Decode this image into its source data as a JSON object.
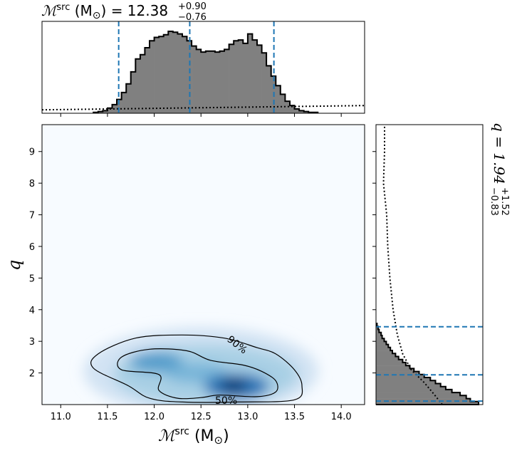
{
  "top_title": {
    "main": "ℳ",
    "sup": "src",
    "rest": " (M",
    "sun": "⊙",
    "close": ") = 12.38",
    "plus": "+0.90",
    "minus": "−0.76"
  },
  "right_title": {
    "main": "q = 1.94",
    "plus": "+1.52",
    "minus": "−0.83"
  },
  "xlabel": {
    "main": "ℳ",
    "sup": "src",
    "rest": " (M",
    "sun": "⊙",
    "close": ")"
  },
  "ylabel": "q",
  "contour_labels": [
    "90%",
    "50%"
  ],
  "chart_data": [
    {
      "type": "heatmap",
      "panel": "joint",
      "x_range": [
        10.8,
        14.25
      ],
      "y_range": [
        1.0,
        9.85
      ],
      "x_ticks": [
        11.0,
        11.5,
        12.0,
        12.5,
        13.0,
        13.5,
        14.0
      ],
      "x_tick_labels": [
        "11.0",
        "11.5",
        "12.0",
        "12.5",
        "13.0",
        "13.5",
        "14.0"
      ],
      "y_ticks": [
        2,
        3,
        4,
        5,
        6,
        7,
        8,
        9
      ],
      "y_tick_labels": [
        "2",
        "3",
        "4",
        "5",
        "6",
        "7",
        "8",
        "9"
      ],
      "density_peaks": [
        {
          "x": 12.85,
          "y": 1.6,
          "weight": 1.0
        },
        {
          "x": 12.0,
          "y": 2.35,
          "weight": 0.55
        },
        {
          "x": 12.4,
          "y": 2.0,
          "weight": 0.35
        }
      ],
      "contour_90": [
        [
          11.4,
          2.6
        ],
        [
          11.8,
          3.1
        ],
        [
          12.3,
          3.2
        ],
        [
          12.75,
          3.1
        ],
        [
          13.1,
          2.8
        ],
        [
          13.3,
          2.6
        ],
        [
          13.5,
          2.1
        ],
        [
          13.58,
          1.6
        ],
        [
          13.5,
          1.15
        ],
        [
          12.9,
          1.08
        ],
        [
          12.3,
          1.08
        ],
        [
          11.95,
          1.2
        ],
        [
          11.72,
          1.6
        ],
        [
          11.35,
          2.15
        ]
      ],
      "contour_50": [
        [
          11.65,
          2.5
        ],
        [
          11.95,
          2.75
        ],
        [
          12.35,
          2.7
        ],
        [
          12.6,
          2.4
        ],
        [
          12.95,
          2.25
        ],
        [
          13.15,
          2.05
        ],
        [
          13.3,
          1.75
        ],
        [
          13.3,
          1.4
        ],
        [
          13.1,
          1.25
        ],
        [
          12.7,
          1.3
        ],
        [
          12.5,
          1.22
        ],
        [
          12.25,
          1.2
        ],
        [
          12.05,
          1.45
        ],
        [
          12.05,
          1.95
        ],
        [
          11.65,
          2.1
        ]
      ],
      "contour_level_labels": [
        "90%",
        "50%"
      ],
      "colormap": "Blues"
    },
    {
      "type": "bar",
      "panel": "top_marginal",
      "parameter": "chirp mass",
      "bin_edges_start": 11.35,
      "bin_width": 0.05,
      "values": [
        0.01,
        0.02,
        0.03,
        0.06,
        0.1,
        0.16,
        0.24,
        0.34,
        0.48,
        0.63,
        0.68,
        0.76,
        0.84,
        0.88,
        0.89,
        0.91,
        0.95,
        0.94,
        0.92,
        0.89,
        0.84,
        0.78,
        0.74,
        0.71,
        0.72,
        0.72,
        0.71,
        0.72,
        0.74,
        0.8,
        0.84,
        0.85,
        0.81,
        0.92,
        0.85,
        0.79,
        0.7,
        0.55,
        0.43,
        0.32,
        0.22,
        0.14,
        0.09,
        0.05,
        0.03,
        0.02,
        0.01,
        0.01
      ],
      "quantile_lines": [
        11.62,
        12.38,
        13.28
      ],
      "prior_level": 0.04,
      "fill_color": "#808080",
      "line_color": "#1f77b4"
    },
    {
      "type": "bar",
      "panel": "right_marginal",
      "parameter": "q",
      "bin_edges_start": 1.0,
      "bin_width": 0.095,
      "values": [
        1.0,
        0.92,
        0.88,
        0.82,
        0.74,
        0.68,
        0.63,
        0.58,
        0.53,
        0.47,
        0.42,
        0.37,
        0.33,
        0.29,
        0.26,
        0.22,
        0.19,
        0.16,
        0.14,
        0.12,
        0.1,
        0.08,
        0.06,
        0.05,
        0.03,
        0.02,
        0.01
      ],
      "quantile_lines": [
        1.11,
        1.94,
        3.46
      ],
      "fill_color": "#808080",
      "line_color": "#1f77b4"
    }
  ]
}
